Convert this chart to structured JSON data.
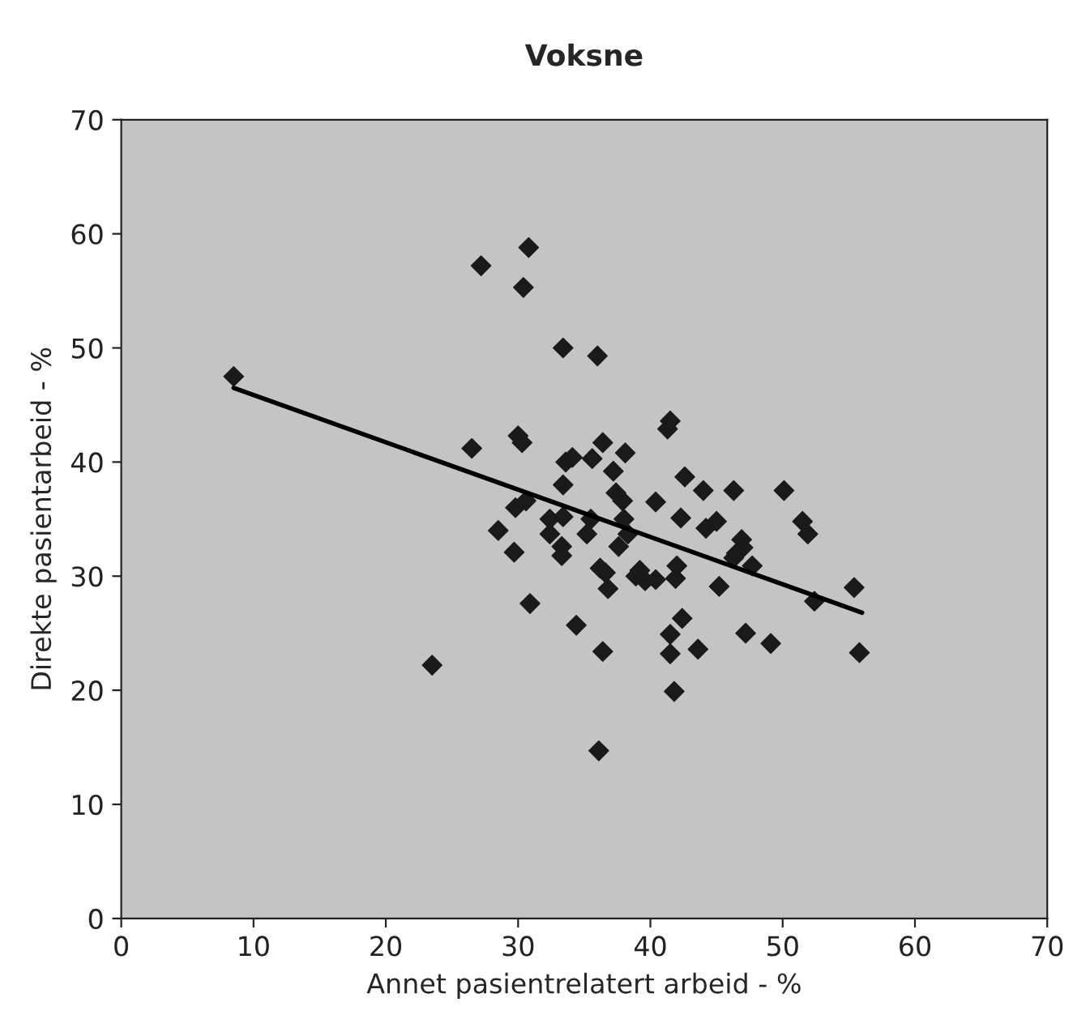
{
  "chart_data": {
    "type": "scatter",
    "title": "Voksne",
    "xlabel": "Annet pasientrelatert arbeid - %",
    "ylabel": "Direkte pasientarbeid - %",
    "xlim": [
      0,
      70
    ],
    "ylim": [
      0,
      70
    ],
    "xticks": [
      0,
      10,
      20,
      30,
      40,
      50,
      60,
      70
    ],
    "yticks": [
      0,
      10,
      20,
      30,
      40,
      50,
      60,
      70
    ],
    "grid": false,
    "marker": "diamond",
    "series": [
      {
        "color": "#1a1a1a",
        "x": [
          8.5,
          23.5,
          26.5,
          27.2,
          28.5,
          29.7,
          29.8,
          30,
          30.3,
          30.4,
          30.6,
          30.8,
          30.9,
          32.4,
          32.4,
          33.3,
          33.3,
          33.4,
          33.4,
          33.4,
          33.6,
          34.1,
          34.4,
          35.2,
          35.5,
          35.6,
          36,
          36.1,
          36.2,
          36.4,
          36.4,
          36.6,
          36.8,
          37.2,
          37.4,
          37.6,
          37.9,
          38.1,
          38.3,
          38.9,
          39.2,
          39.6,
          40.4,
          40.4,
          41.3,
          41.5,
          41.5,
          41.5,
          41.8,
          41.9,
          42,
          42.3,
          42.4,
          42.6,
          43.6,
          44,
          44.2,
          45,
          45.2,
          46.3,
          46.3,
          46.9,
          47,
          47.2,
          47.7,
          49.1,
          50.1,
          51.5,
          51.9,
          52.4,
          55.4,
          55.8,
          38,
          46.5
        ],
        "values": [
          47.5,
          22.2,
          41.2,
          57.2,
          34,
          32.1,
          36,
          42.3,
          41.7,
          55.3,
          36.6,
          58.8,
          27.6,
          35,
          33.7,
          32.6,
          31.8,
          35.2,
          38,
          50,
          40,
          40.4,
          25.7,
          33.7,
          35,
          40.3,
          49.3,
          14.7,
          30.7,
          41.7,
          23.4,
          30.3,
          28.9,
          39.2,
          37.3,
          32.6,
          36.6,
          40.8,
          33.7,
          30,
          30.5,
          29.6,
          29.7,
          36.5,
          42.9,
          43.6,
          24.9,
          23.2,
          19.9,
          29.8,
          30.9,
          35.1,
          26.3,
          38.7,
          23.6,
          37.5,
          34.2,
          34.8,
          29.1,
          37.5,
          31.6,
          33.2,
          32.5,
          25,
          30.9,
          24.1,
          37.5,
          34.8,
          33.7,
          27.8,
          29,
          23.3,
          35,
          32
        ]
      },
      {
        "type": "line",
        "color": "#000000",
        "x": [
          8.5,
          56
        ],
        "values": [
          46.5,
          26.8
        ],
        "marker": "none",
        "line_style": "solid"
      }
    ]
  }
}
